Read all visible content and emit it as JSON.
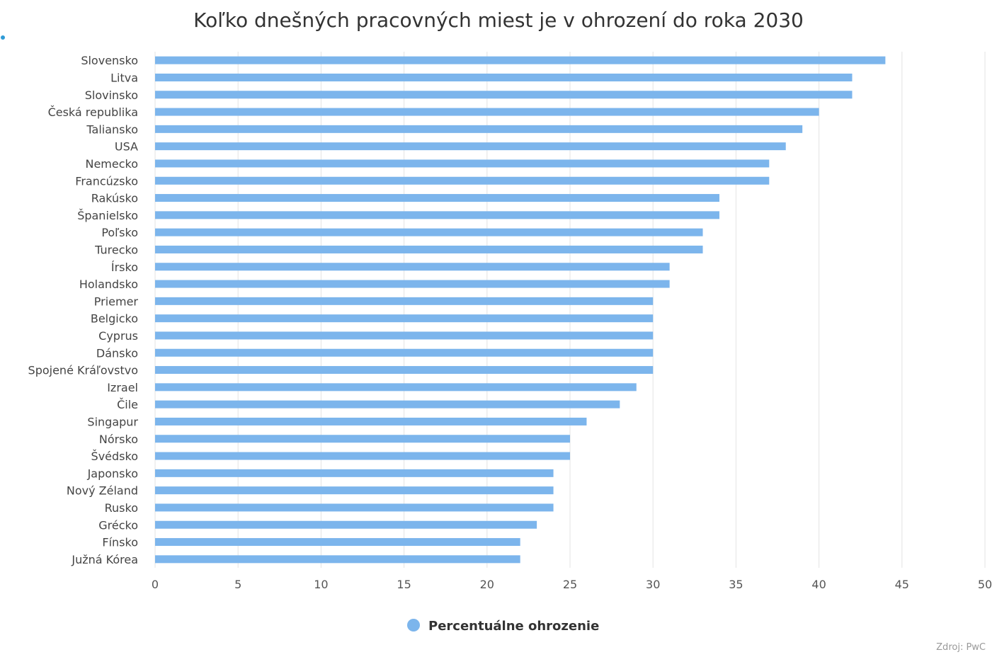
{
  "chart_data": {
    "type": "bar",
    "orientation": "horizontal",
    "title": "Koľko dnešných pracovných miest je v ohrození do roka 2030",
    "categories": [
      "Slovensko",
      "Litva",
      "Slovinsko",
      "Česká republika",
      "Taliansko",
      "USA",
      "Nemecko",
      "Francúzsko",
      "Rakúsko",
      "Španielsko",
      "Poľsko",
      "Turecko",
      "Írsko",
      "Holandsko",
      "Priemer",
      "Belgicko",
      "Cyprus",
      "Dánsko",
      "Spojené Kráľovstvo",
      "Izrael",
      "Čile",
      "Singapur",
      "Nórsko",
      "Švédsko",
      "Japonsko",
      "Nový Zéland",
      "Rusko",
      "Grécko",
      "Fínsko",
      "Južná Kórea"
    ],
    "series": [
      {
        "name": "Percentuálne ohrozenie",
        "color": "#7cb5ec",
        "values": [
          44,
          42,
          42,
          40,
          39,
          38,
          37,
          37,
          34,
          34,
          33,
          33,
          31,
          31,
          30,
          30,
          30,
          30,
          30,
          29,
          28,
          26,
          25,
          25,
          24,
          24,
          24,
          23,
          22,
          22
        ]
      }
    ],
    "xlim": [
      0,
      50
    ],
    "xticks": [
      "0",
      "5",
      "10",
      "15",
      "20",
      "25",
      "30",
      "35",
      "40",
      "45",
      "50"
    ],
    "grid": true,
    "legend": "bottom-center"
  },
  "credit": "Zdroj: PwC",
  "colors": {
    "bar": "#7cb5ec",
    "marker": "#2f9bd6"
  }
}
